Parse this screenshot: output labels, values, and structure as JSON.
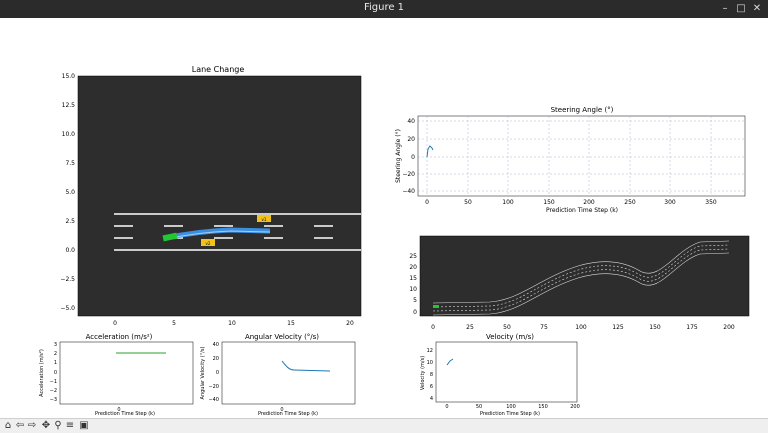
{
  "window": {
    "title": "Figure 1",
    "controls": [
      "–",
      "□",
      "✕"
    ]
  },
  "toolbar": {
    "icons": [
      "home-icon",
      "back-icon",
      "forward-icon",
      "pan-icon",
      "zoom-icon",
      "configure-icon",
      "save-icon"
    ],
    "glyphs": [
      "⌂",
      "⇦",
      "⇨",
      "✥",
      "⚲",
      "≡",
      "▣"
    ]
  },
  "colors": {
    "dark_bg": "#2d2d2d",
    "lane": "#ffffff",
    "ego": "#22c832",
    "traj": "#3fa0ff",
    "car": "#f2c21b",
    "line": "#1f77b4",
    "accel": "#2ca02c"
  },
  "plots": {
    "lane": {
      "title": "Lane Change",
      "xticks": [
        "0",
        "5",
        "10",
        "15",
        "20"
      ],
      "yticks": [
        "15.0",
        "12.5",
        "10.0",
        "7.5",
        "5.0",
        "2.5",
        "0.0",
        "−2.5",
        "−5.0"
      ],
      "car_labels": [
        "v1",
        "v2"
      ]
    },
    "steering": {
      "title": "Steering Angle (°)",
      "xlabel": "Prediction Time Step (k)",
      "ylabel": "Steering Angle (°)",
      "xticks": [
        "0",
        "50",
        "100",
        "150",
        "200",
        "250",
        "300",
        "350"
      ],
      "yticks": [
        "40",
        "20",
        "0",
        "−20",
        "−40"
      ]
    },
    "road": {
      "xticks": [
        "0",
        "25",
        "50",
        "75",
        "100",
        "125",
        "150",
        "175",
        "200"
      ],
      "yticks": [
        "25",
        "20",
        "15",
        "10",
        "5",
        "0"
      ]
    },
    "accel": {
      "title": "Acceleration (m/s²)",
      "xlabel": "Prediction Time Step (k)",
      "ylabel": "Acceleration (m/s²)",
      "xticks": [
        "0"
      ],
      "yticks": [
        "3",
        "2",
        "1",
        "0",
        "−1",
        "−2",
        "−3"
      ]
    },
    "angvel": {
      "title": "Angular Velocity (°/s)",
      "xlabel": "Prediction Time Step (k)",
      "ylabel": "Angular Velocity (°/s)",
      "xticks": [
        "0"
      ],
      "yticks": [
        "40",
        "20",
        "0",
        "−20",
        "−40"
      ]
    },
    "velocity": {
      "title": "Velocity (m/s)",
      "xlabel": "Prediction Time Step (k)",
      "ylabel": "Velocity (m/s)",
      "xticks": [
        "0",
        "50",
        "100",
        "150",
        "200"
      ],
      "yticks": [
        "12",
        "10",
        "8",
        "6",
        "4"
      ]
    }
  }
}
